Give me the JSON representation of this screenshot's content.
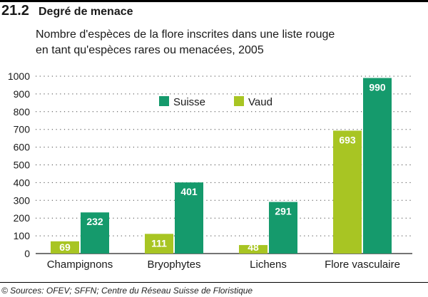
{
  "header": {
    "section_number": "21.2",
    "section_title": "Degré de menace"
  },
  "chart_data": {
    "type": "bar",
    "title": "Nombre d'espèces de la flore inscrites dans une liste rouge en tant qu'espèces rares ou menacées, 2005",
    "title_lines": [
      "Nombre d'espèces de la flore inscrites dans une liste rouge",
      "en tant qu'espèces rares ou menacées, 2005"
    ],
    "categories": [
      "Champignons",
      "Bryophytes",
      "Lichens",
      "Flore vasculaire"
    ],
    "series": [
      {
        "name": "Vaud",
        "values": [
          69,
          111,
          48,
          693
        ],
        "color": "#a8c523"
      },
      {
        "name": "Suisse",
        "values": [
          232,
          401,
          291,
          990
        ],
        "color": "#159a6c"
      }
    ],
    "legend_order": [
      "Suisse",
      "Vaud"
    ],
    "ylim": [
      0,
      1000
    ],
    "yticks": [
      0,
      100,
      200,
      300,
      400,
      500,
      600,
      700,
      800,
      900,
      1000
    ],
    "grid": true,
    "legend": "top-center",
    "xlabel": "",
    "ylabel": ""
  },
  "source": "© Sources: OFEV; SFFN; Centre du Réseau Suisse de Floristique"
}
